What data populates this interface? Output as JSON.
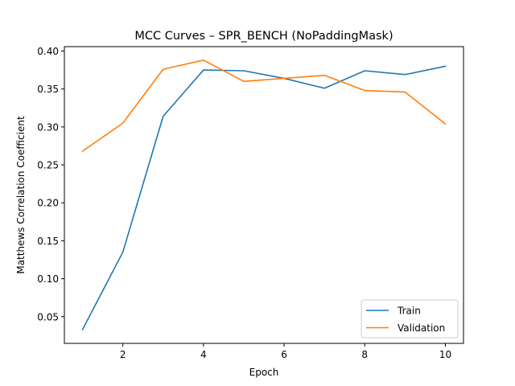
{
  "chart_data": {
    "type": "line",
    "title": "MCC Curves – SPR_BENCH (NoPaddingMask)",
    "xlabel": "Epoch",
    "ylabel": "Matthews Correlation Coefficient",
    "x": [
      1,
      2,
      3,
      4,
      5,
      6,
      7,
      8,
      9,
      10
    ],
    "xlim": [
      0.55,
      10.45
    ],
    "ylim": [
      0.0148,
      0.4058
    ],
    "xticks": [
      2,
      4,
      6,
      8,
      10
    ],
    "yticks": [
      0.05,
      0.1,
      0.15,
      0.2,
      0.25,
      0.3,
      0.35,
      0.4
    ],
    "ytick_labels": [
      "0.05",
      "0.10",
      "0.15",
      "0.20",
      "0.25",
      "0.30",
      "0.35",
      "0.40"
    ],
    "grid": false,
    "legend_position": "lower-right",
    "series": [
      {
        "name": "Train",
        "color": "#1f77b4",
        "values": [
          0.033,
          0.135,
          0.314,
          0.375,
          0.374,
          0.364,
          0.351,
          0.374,
          0.369,
          0.38
        ]
      },
      {
        "name": "Validation",
        "color": "#ff7f0e",
        "values": [
          0.268,
          0.305,
          0.376,
          0.388,
          0.36,
          0.364,
          0.368,
          0.348,
          0.346,
          0.304
        ]
      }
    ]
  }
}
